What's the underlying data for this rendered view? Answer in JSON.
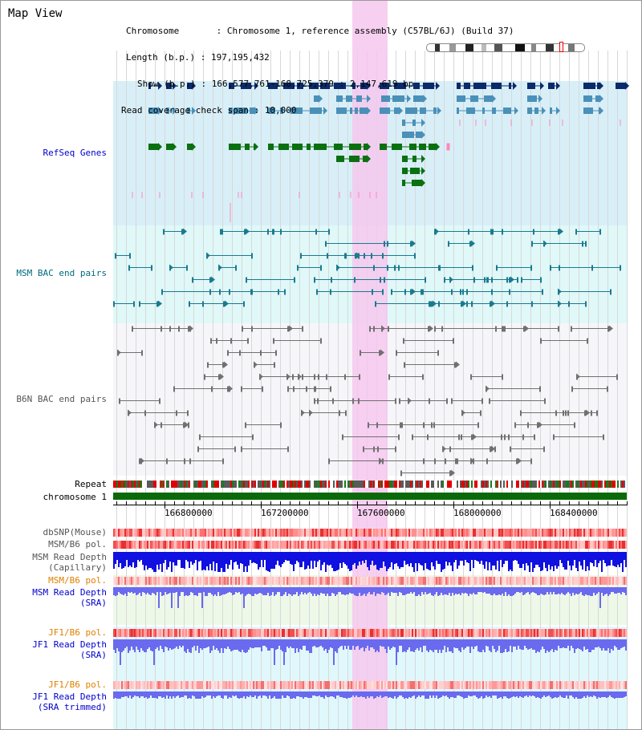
{
  "title": "Map View",
  "info": {
    "chromosome": "Chromosome       : Chromosome 1, reference assembly (C57BL/6J) (Build 37)",
    "length": "Length (b.p.) : 197,195,432",
    "show": "Show (b.p.) : 166,577,761-168,725,379 : 2,147,619 bp",
    "coverage": "Read coverage check span : 10,000"
  },
  "tracks": {
    "refseq": "RefSeq Genes",
    "msm_bac": "MSM BAC end pairs",
    "b6n_bac": "B6N BAC end pairs",
    "repeat": "Repeat",
    "chromosome": "chromosome 1",
    "dbsnp": "dbSNP(Mouse)",
    "msm_b6_pol_1": "MSM/B6 pol.",
    "msm_depth_cap_1": "MSM Read Depth",
    "msm_depth_cap_2": "(Capillary)",
    "msm_b6_pol_2": "MSM/B6 pol.",
    "msm_depth_sra_1": "MSM Read Depth",
    "msm_depth_sra_2": "(SRA)",
    "jf1_pol_1": "JF1/B6 pol.",
    "jf1_depth_1": "JF1 Read Depth",
    "jf1_depth_2": "(SRA)",
    "jf1_pol_2": "JF1/B6 pol.",
    "jf1_depth_trim_1": "JF1 Read Depth",
    "jf1_depth_trim_2": "(SRA trimmed)"
  },
  "axis": {
    "ticks": [
      "166800000",
      "167200000",
      "167600000",
      "168000000",
      "168400000"
    ]
  },
  "colors": {
    "refseq_dark": "#0a2a6a",
    "refseq_mid": "#4a90b8",
    "refseq_green": "#0a7010",
    "msm_bac": "#1a7a90",
    "b6n_bac": "#707070",
    "highlight": "#f6c8ee",
    "chromosome_bar": "#0a6a0a",
    "depth_blue": "#1010e0",
    "depth_light": "#6a6aef"
  }
}
